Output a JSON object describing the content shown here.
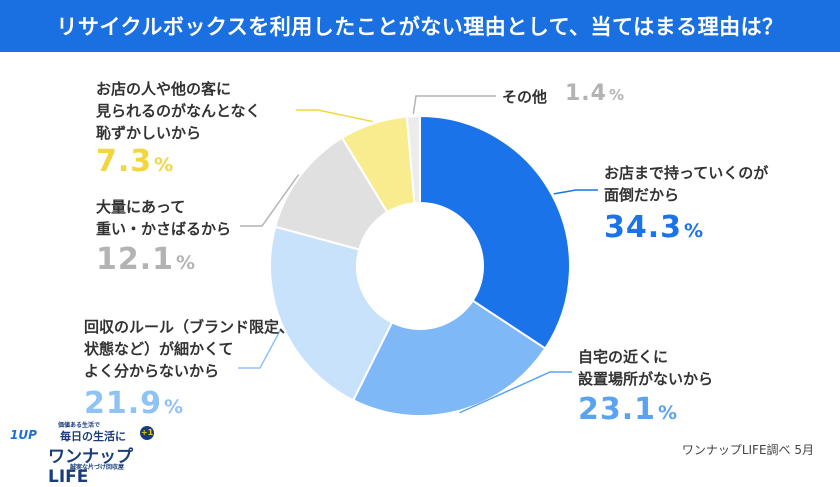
{
  "title": "リサイクルボックスを利用したことがない理由として、当てはまる理由は？",
  "source": "ワンナップLIFE調べ 5月",
  "logo": {
    "tagline": "価値ある生活で",
    "catch": "毎日の生活に",
    "name": "ワンナップLIFE",
    "badge": "1UP",
    "plus": "+1",
    "sub": "誠実な片づけ回収屋"
  },
  "colors": {
    "title_bg": "#1a70e0",
    "dark_blue": "#1a73e8",
    "mid_blue": "#7eb8f7",
    "light_blue": "#c9e2fb",
    "gray": "#e0e0e0",
    "yellow": "#f9ec8f",
    "light_gray": "#ececec"
  },
  "chart_data": {
    "type": "pie",
    "donut": true,
    "unit": "%",
    "slices": [
      {
        "label": "お店まで持っていくのが面倒だから",
        "value": 34.3,
        "value_text": "34.3",
        "color": "#1a73e8",
        "pct_color": "#1a73e8"
      },
      {
        "label": "自宅の近くに設置場所がないから",
        "value": 23.1,
        "value_text": "23.1",
        "color": "#7eb8f7",
        "pct_color": "#5aa3f0"
      },
      {
        "label": "回収のルール（ブランド限定、状態など）が細かくてよく分からないから",
        "value": 21.9,
        "value_text": "21.9",
        "color": "#c9e2fb",
        "pct_color": "#8fc2f5"
      },
      {
        "label": "大量にあって重い・かさばるから",
        "value": 12.1,
        "value_text": "12.1",
        "color": "#e0e0e0",
        "pct_color": "#b3b3b3"
      },
      {
        "label": "お店の人や他の客に見られるのがなんとなく恥ずかしいから",
        "value": 7.3,
        "value_text": "7.3",
        "color": "#f9ec8f",
        "pct_color": "#f2d63b"
      },
      {
        "label": "その他",
        "value": 1.4,
        "value_text": "1.4",
        "color": "#ececec",
        "pct_color": "#b3b3b3"
      }
    ]
  },
  "labels": {
    "s0": [
      "お店まで持っていくのが",
      "面倒だから"
    ],
    "s1": [
      "自宅の近くに",
      "設置場所がないから"
    ],
    "s2": [
      "回収のルール（ブランド限定、",
      "状態など）が細かくて",
      "よく分からないから"
    ],
    "s3": [
      "大量にあって",
      "重い・かさばるから"
    ],
    "s4": [
      "お店の人や他の客に",
      "見られるのがなんとなく",
      "恥ずかしいから"
    ],
    "s5": [
      "その他"
    ]
  }
}
